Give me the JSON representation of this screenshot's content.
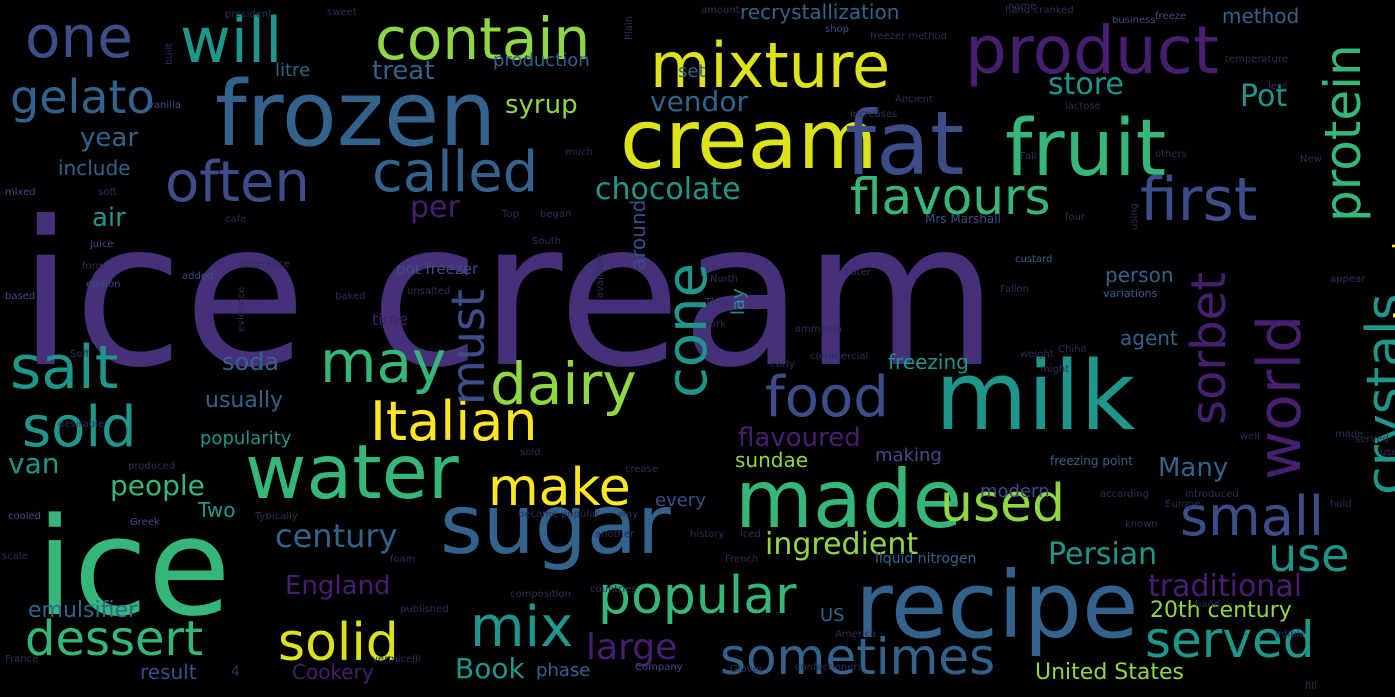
{
  "palette": {
    "purple": "#46307a",
    "violet": "#481f70",
    "indigo": "#3d4d8a",
    "blue": "#33638d",
    "teal": "#1f968b",
    "green": "#35b779",
    "lime": "#8fd744",
    "yellow": "#dde318",
    "gold": "#fde725",
    "dark": "#2a2f5a"
  },
  "words": [
    {
      "text": "ice cream",
      "color": "purple"
    },
    {
      "text": "ice",
      "color": "green"
    },
    {
      "text": "milk",
      "color": "teal"
    },
    {
      "text": "cream",
      "color": "yellow"
    },
    {
      "text": "frozen",
      "color": "blue"
    },
    {
      "text": "recipe",
      "color": "blue"
    },
    {
      "text": "fat",
      "color": "indigo"
    },
    {
      "text": "fruit",
      "color": "green"
    },
    {
      "text": "sugar",
      "color": "blue"
    },
    {
      "text": "made",
      "color": "green"
    },
    {
      "text": "water",
      "color": "green"
    },
    {
      "text": "product",
      "color": "violet"
    },
    {
      "text": "mixture",
      "color": "yellow"
    },
    {
      "text": "contain",
      "color": "lime"
    },
    {
      "text": "will",
      "color": "teal"
    },
    {
      "text": "one",
      "color": "indigo"
    },
    {
      "text": "gelato",
      "color": "blue"
    },
    {
      "text": "often",
      "color": "indigo"
    },
    {
      "text": "called",
      "color": "blue"
    },
    {
      "text": "flavours",
      "color": "green"
    },
    {
      "text": "first",
      "color": "indigo"
    },
    {
      "text": "protein",
      "color": "green"
    },
    {
      "text": "salt",
      "color": "teal"
    },
    {
      "text": "may",
      "color": "green"
    },
    {
      "text": "sold",
      "color": "teal"
    },
    {
      "text": "dairy",
      "color": "lime"
    },
    {
      "text": "Italian",
      "color": "gold"
    },
    {
      "text": "food",
      "color": "indigo"
    },
    {
      "text": "cone",
      "color": "teal"
    },
    {
      "text": "must",
      "color": "indigo"
    },
    {
      "text": "world",
      "color": "violet"
    },
    {
      "text": "crystals",
      "color": "teal"
    },
    {
      "text": "sorbet",
      "color": "violet"
    },
    {
      "text": "small",
      "color": "indigo"
    },
    {
      "text": "used",
      "color": "lime"
    },
    {
      "text": "make",
      "color": "gold"
    },
    {
      "text": "use",
      "color": "teal"
    },
    {
      "text": "popular",
      "color": "green"
    },
    {
      "text": "mix",
      "color": "teal"
    },
    {
      "text": "dessert",
      "color": "green"
    },
    {
      "text": "solid",
      "color": "yellow"
    },
    {
      "text": "sometimes",
      "color": "blue"
    },
    {
      "text": "served",
      "color": "teal"
    },
    {
      "text": "chocolate",
      "color": "teal"
    },
    {
      "text": "vendor",
      "color": "blue"
    },
    {
      "text": "syrup",
      "color": "lime"
    },
    {
      "text": "store",
      "color": "teal"
    },
    {
      "text": "Pot",
      "color": "teal"
    },
    {
      "text": "treat",
      "color": "blue"
    },
    {
      "text": "recrystallization",
      "color": "blue"
    },
    {
      "text": "method",
      "color": "blue"
    },
    {
      "text": "year",
      "color": "blue"
    },
    {
      "text": "include",
      "color": "blue"
    },
    {
      "text": "air",
      "color": "teal"
    },
    {
      "text": "per",
      "color": "violet"
    },
    {
      "text": "soda",
      "color": "blue"
    },
    {
      "text": "usually",
      "color": "blue"
    },
    {
      "text": "popularity",
      "color": "teal"
    },
    {
      "text": "van",
      "color": "teal"
    },
    {
      "text": "people",
      "color": "green"
    },
    {
      "text": "century",
      "color": "blue"
    },
    {
      "text": "ingredient",
      "color": "lime"
    },
    {
      "text": "Persian",
      "color": "teal"
    },
    {
      "text": "Many",
      "color": "blue"
    },
    {
      "text": "American",
      "color": "gold"
    },
    {
      "text": "flavoured",
      "color": "violet"
    },
    {
      "text": "England",
      "color": "violet"
    },
    {
      "text": "traditional",
      "color": "violet"
    },
    {
      "text": "20th century",
      "color": "lime"
    },
    {
      "text": "emulsifier",
      "color": "blue"
    },
    {
      "text": "Two",
      "color": "teal"
    },
    {
      "text": "large",
      "color": "violet"
    },
    {
      "text": "Book",
      "color": "teal"
    },
    {
      "text": "phase",
      "color": "blue"
    },
    {
      "text": "Cookery",
      "color": "violet"
    },
    {
      "text": "result",
      "color": "indigo"
    },
    {
      "text": "United States",
      "color": "lime"
    },
    {
      "text": "freezing",
      "color": "teal"
    },
    {
      "text": "agent",
      "color": "blue"
    },
    {
      "text": "person",
      "color": "blue"
    },
    {
      "text": "sundae",
      "color": "lime"
    },
    {
      "text": "making",
      "color": "indigo"
    },
    {
      "text": "modern",
      "color": "indigo"
    },
    {
      "text": "around",
      "color": "indigo"
    },
    {
      "text": "lay",
      "color": "teal"
    },
    {
      "text": "time",
      "color": "violet"
    },
    {
      "text": "every",
      "color": "indigo"
    },
    {
      "text": "production",
      "color": "blue"
    },
    {
      "text": "litre",
      "color": "blue"
    },
    {
      "text": "set",
      "color": "blue"
    },
    {
      "text": "pot freezer",
      "color": "indigo"
    },
    {
      "text": "liquid nitrogen",
      "color": "blue"
    },
    {
      "text": "freezing point",
      "color": "blue"
    },
    {
      "text": "Mrs Marshall",
      "color": "indigo"
    },
    {
      "text": "shop",
      "color": "indigo"
    },
    {
      "text": "custard",
      "color": "blue"
    },
    {
      "text": "variations",
      "color": "blue"
    },
    {
      "text": "business",
      "color": "indigo"
    },
    {
      "text": "freeze",
      "color": "indigo"
    },
    {
      "text": "vanilla",
      "color": "indigo"
    },
    {
      "text": "soft",
      "color": "dark"
    },
    {
      "text": "mixed",
      "color": "indigo"
    },
    {
      "text": "based",
      "color": "indigo"
    },
    {
      "text": "edition",
      "color": "indigo"
    },
    {
      "text": "added",
      "color": "indigo"
    },
    {
      "text": "juice",
      "color": "indigo"
    },
    {
      "text": "form",
      "color": "dark"
    },
    {
      "text": "commercial",
      "color": "dark"
    },
    {
      "text": "early",
      "color": "dark"
    },
    {
      "text": "cooled",
      "color": "indigo"
    },
    {
      "text": "scale",
      "color": "dark"
    },
    {
      "text": "Greek",
      "color": "indigo"
    },
    {
      "text": "produced",
      "color": "dark"
    },
    {
      "text": "France",
      "color": "dark"
    },
    {
      "text": "Company",
      "color": "indigo"
    },
    {
      "text": "vermicelli",
      "color": "dark"
    },
    {
      "text": "published",
      "color": "dark"
    },
    {
      "text": "hand",
      "color": "dark"
    },
    {
      "text": "edible",
      "color": "dark"
    },
    {
      "text": "China",
      "color": "dark"
    },
    {
      "text": "introduced",
      "color": "dark"
    },
    {
      "text": "according",
      "color": "dark"
    },
    {
      "text": "became popular",
      "color": "dark"
    },
    {
      "text": "Europe",
      "color": "dark"
    },
    {
      "text": "Typically",
      "color": "dark"
    },
    {
      "text": "North",
      "color": "dark"
    },
    {
      "text": "South",
      "color": "dark"
    },
    {
      "text": "Top",
      "color": "dark"
    },
    {
      "text": "began",
      "color": "dark"
    },
    {
      "text": "difference",
      "color": "dark"
    },
    {
      "text": "lactose",
      "color": "dark"
    },
    {
      "text": "temperature",
      "color": "dark"
    },
    {
      "text": "Ancient",
      "color": "dark"
    },
    {
      "text": "president",
      "color": "dark"
    },
    {
      "text": "hand-cranked",
      "color": "dark"
    },
    {
      "text": "freezer method",
      "color": "dark"
    },
    {
      "text": "Glover",
      "color": "dark"
    },
    {
      "text": "confectioners",
      "color": "dark"
    },
    {
      "text": "appear",
      "color": "dark"
    },
    {
      "text": "New",
      "color": "dark"
    },
    {
      "text": "York",
      "color": "dark"
    },
    {
      "text": "Fall",
      "color": "dark"
    },
    {
      "text": "countries",
      "color": "dark"
    },
    {
      "text": "others",
      "color": "dark"
    },
    {
      "text": "weight",
      "color": "dark"
    },
    {
      "text": "US",
      "color": "blue"
    },
    {
      "text": "four",
      "color": "dark"
    },
    {
      "text": "fill",
      "color": "dark"
    },
    {
      "text": "sweet",
      "color": "dark"
    },
    {
      "text": "amount",
      "color": "dark"
    },
    {
      "text": "increases",
      "color": "dark"
    },
    {
      "text": "evidence",
      "color": "dark"
    },
    {
      "text": "another",
      "color": "dark"
    },
    {
      "text": "history",
      "color": "dark"
    },
    {
      "text": "French",
      "color": "dark"
    },
    {
      "text": "well",
      "color": "dark"
    },
    {
      "text": "Plain",
      "color": "dark"
    },
    {
      "text": "built",
      "color": "dark"
    },
    {
      "text": "composition",
      "color": "dark"
    },
    {
      "text": "America",
      "color": "dark"
    },
    {
      "text": "less",
      "color": "dark"
    },
    {
      "text": "known",
      "color": "dark"
    },
    {
      "text": "crease",
      "color": "dark"
    },
    {
      "text": "used",
      "color": "dark"
    },
    {
      "text": "much",
      "color": "dark"
    },
    {
      "text": "unsalted",
      "color": "dark"
    },
    {
      "text": "might",
      "color": "dark"
    },
    {
      "text": "Thus",
      "color": "dark"
    },
    {
      "text": "baked",
      "color": "dark"
    },
    {
      "text": "using",
      "color": "dark"
    },
    {
      "text": "name",
      "color": "dark"
    },
    {
      "text": "cafe",
      "color": "dark"
    },
    {
      "text": "foam",
      "color": "dark"
    },
    {
      "text": "served",
      "color": "dark"
    },
    {
      "text": "sold",
      "color": "dark"
    },
    {
      "text": "available",
      "color": "dark"
    },
    {
      "text": "Fallon",
      "color": "dark"
    },
    {
      "text": "Later",
      "color": "dark"
    },
    {
      "text": "desirable",
      "color": "dark"
    },
    {
      "text": "made",
      "color": "dark"
    },
    {
      "text": "way",
      "color": "dark"
    },
    {
      "text": "ammonia",
      "color": "dark"
    },
    {
      "text": "4",
      "color": "dark"
    },
    {
      "text": "hold",
      "color": "dark"
    },
    {
      "text": "Soft",
      "color": "dark"
    },
    {
      "text": "iced",
      "color": "dark"
    }
  ]
}
